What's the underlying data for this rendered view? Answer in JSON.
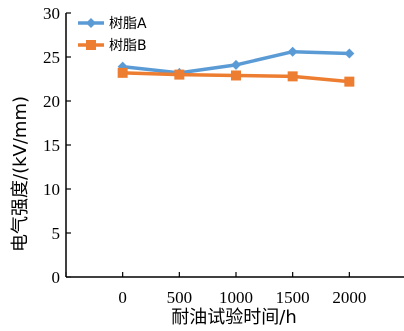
{
  "chart_data": {
    "type": "line",
    "x": [
      0,
      500,
      1000,
      1500,
      2000
    ],
    "xlabel": "耐油试验时间/h",
    "ylabel": "电气强度/(kV/mm)",
    "xlim": [
      -500,
      2500
    ],
    "ylim": [
      0,
      30
    ],
    "xticks": [
      "0",
      "500",
      "1000",
      "1500",
      "2000"
    ],
    "yticks": [
      "0",
      "5",
      "10",
      "15",
      "20",
      "25",
      "30"
    ],
    "grid": false,
    "legend_position": "top-left",
    "series": [
      {
        "name": "树脂A",
        "values": [
          23.9,
          23.2,
          24.1,
          25.6,
          25.4
        ],
        "color": "#5b9bd5",
        "marker": "diamond"
      },
      {
        "name": "树脂B",
        "values": [
          23.2,
          23.0,
          22.9,
          22.8,
          22.2
        ],
        "color": "#ed7d31",
        "marker": "square"
      }
    ]
  }
}
